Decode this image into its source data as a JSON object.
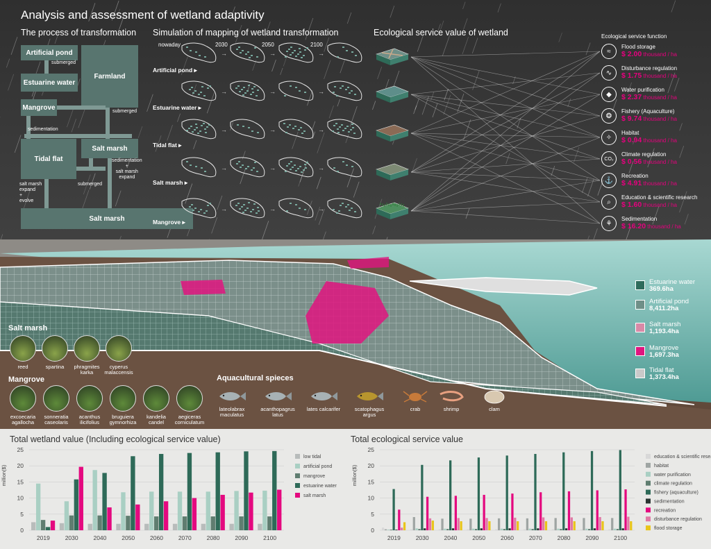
{
  "title": "Analysis and assessment of wetland adaptivity",
  "sections": {
    "process": "The process of transformation",
    "simulation": "Simulation of mapping of wetland transformation",
    "ecological": "Ecological service value of wetland"
  },
  "process": {
    "boxes": {
      "artificial_pond": "Artificial pond",
      "farmland": "Farmland",
      "estuarine_water": "Estuarine water",
      "mangrove": "Mangrove",
      "tidal_flat": "Tidal flat",
      "salt_marsh_1": "Salt marsh",
      "salt_marsh_2": "Salt marsh"
    },
    "notes": {
      "submerged_1": "submerged",
      "submerged_2": "submerged",
      "submerged_3": "submerged",
      "sedimentation": "sedimentation",
      "sed_salt": "sedimentation\n+\nsalt marsh\nexpand",
      "expand_evolve": "salt marsh\nexpand\n+\nevolve"
    }
  },
  "simulation": {
    "years": [
      "nowaday",
      "2030",
      "2050",
      "2100"
    ],
    "rows": [
      "Artificial pond ▸",
      "Estuarine water ▸",
      "Tidal flat ▸",
      "Salt marsh ▸",
      "Mangrove ▸"
    ]
  },
  "services": {
    "heading": "Ecological service function",
    "unit": " thousand / ha",
    "items": [
      {
        "name": "Flood storage",
        "value": "$ 2.00",
        "icon": "flood-icon"
      },
      {
        "name": "Disturbance regulation",
        "value": "$ 1.75",
        "icon": "wave-icon"
      },
      {
        "name": "Water purification",
        "value": "$ 2.37",
        "icon": "drop-icon"
      },
      {
        "name": "Fishery (Aquaculture)",
        "value": "$ 9.74",
        "icon": "fish-icon"
      },
      {
        "name": "Habitat",
        "value": "$ 0.94",
        "icon": "bird-icon"
      },
      {
        "name": "Climate regulation",
        "value": "$ 0.56",
        "icon": "co2-icon"
      },
      {
        "name": "Recreation",
        "value": "$ 4.91",
        "icon": "boat-icon"
      },
      {
        "name": "Education & scientific research",
        "value": "$ 1.60",
        "icon": "magnifier-icon"
      },
      {
        "name": "Sedimentation",
        "value": "$ 16.20",
        "icon": "roots-icon"
      }
    ]
  },
  "area_legend": [
    {
      "name": "Estuarine water",
      "value": "369.6ha",
      "color": "#2f6b5c"
    },
    {
      "name": "Artificial pond",
      "value": "8,411.2ha",
      "color": "#6f8f88"
    },
    {
      "name": "Salt marsh",
      "value": "1,193.4ha",
      "color": "#d88aa7"
    },
    {
      "name": "Mangrove",
      "value": "1,697.3ha",
      "color": "#e0157f"
    },
    {
      "name": "Tidal flat",
      "value": "1,373.4ha",
      "color": "#c9c9c9"
    }
  ],
  "species": {
    "salt_marsh_title": "Salt marsh",
    "salt_marsh": [
      "reed",
      "spartina",
      "phragmites\nkarka",
      "cyperus\nmalaccensis"
    ],
    "mangrove_title": "Mangrove",
    "mangrove": [
      "excoecaria\nagallocha",
      "sonneratia\ncaseolaris",
      "acanthus\nilicifolius",
      "bruguiera\ngymnorhiza",
      "kandelia\ncandel",
      "aegiceras\ncorniculatum"
    ],
    "aqua_title": "Aquacultural spieces",
    "aqua": [
      "lateolabrax\nmaculatus",
      "acanthopagrus\nlatus",
      "lates calcarifer",
      "scatophagus\nargus",
      "crab",
      "shrimp",
      "clam"
    ]
  },
  "chart_data": [
    {
      "type": "bar",
      "title": "Total wetland value (Including ecological service value)",
      "ylabel": "million($)",
      "ylim": [
        0,
        25
      ],
      "yticks": [
        0,
        5,
        10,
        15,
        20,
        25
      ],
      "categories": [
        "2019",
        "2030",
        "2040",
        "2050",
        "2060",
        "2070",
        "2080",
        "2090",
        "2100"
      ],
      "legend": "right",
      "series": [
        {
          "name": "low tidal",
          "color": "#b8bcbb",
          "values": [
            2.5,
            2.2,
            2.0,
            2.0,
            2.0,
            2.0,
            2.0,
            2.0,
            2.0
          ]
        },
        {
          "name": "artificial pond",
          "color": "#a9cfc3",
          "values": [
            14.5,
            9.0,
            18.7,
            11.8,
            12.0,
            12.0,
            12.0,
            12.2,
            12.3
          ]
        },
        {
          "name": "mangrove",
          "color": "#5f7d70",
          "values": [
            3.2,
            4.6,
            4.6,
            4.5,
            4.3,
            4.3,
            4.3,
            4.3,
            4.3
          ]
        },
        {
          "name": "estuarine water",
          "color": "#2e6a58",
          "values": [
            1.0,
            15.8,
            17.8,
            23.0,
            23.7,
            24.0,
            24.2,
            24.5,
            24.6
          ]
        },
        {
          "name": "salt marsh",
          "color": "#e4097f",
          "values": [
            3.0,
            19.7,
            7.1,
            8.0,
            9.0,
            10.0,
            11.0,
            11.7,
            12.6
          ]
        }
      ]
    },
    {
      "type": "bar",
      "title": "Total ecological service value",
      "ylabel": "million($)",
      "ylim": [
        0,
        25
      ],
      "yticks": [
        0,
        5,
        10,
        15,
        20,
        25
      ],
      "categories": [
        "2019",
        "2030",
        "2040",
        "2050",
        "2060",
        "2070",
        "2080",
        "2090",
        "2100"
      ],
      "legend": "right",
      "series": [
        {
          "name": "education & scientific research",
          "color": "#d8d8d8",
          "values": [
            0.8,
            0.3,
            0.3,
            0.3,
            0.3,
            0.3,
            0.3,
            0.3,
            0.3
          ]
        },
        {
          "name": "habitat",
          "color": "#9fa5a3",
          "values": [
            0.3,
            4.1,
            3.6,
            3.6,
            3.7,
            3.7,
            3.8,
            3.8,
            3.8
          ]
        },
        {
          "name": "water purification",
          "color": "#a9cfc3",
          "values": [
            0.2,
            0.6,
            0.5,
            0.5,
            0.5,
            0.5,
            0.5,
            0.5,
            0.5
          ]
        },
        {
          "name": "climate regulation",
          "color": "#5f7d70",
          "values": [
            0.2,
            0.4,
            0.4,
            0.4,
            0.4,
            0.4,
            0.4,
            0.4,
            0.4
          ]
        },
        {
          "name": "fishery (aquaculture)",
          "color": "#2e6a58",
          "values": [
            12.8,
            20.3,
            21.7,
            22.6,
            23.2,
            23.7,
            24.2,
            24.6,
            24.9
          ]
        },
        {
          "name": "sedimentation",
          "color": "#2a3532",
          "values": [
            0.2,
            0.6,
            0.6,
            0.6,
            0.6,
            0.6,
            0.6,
            0.6,
            0.6
          ]
        },
        {
          "name": "recreation",
          "color": "#e4097f",
          "values": [
            6.4,
            10.4,
            10.7,
            11.0,
            11.4,
            11.8,
            12.1,
            12.4,
            12.7
          ]
        },
        {
          "name": "disturbance regulation",
          "color": "#e07aa5",
          "values": [
            0.8,
            3.7,
            3.8,
            3.8,
            3.9,
            4.0,
            4.0,
            4.1,
            4.2
          ]
        },
        {
          "name": "flood storage",
          "color": "#e9c51a",
          "values": [
            2.5,
            3.0,
            2.8,
            2.8,
            2.8,
            2.8,
            2.8,
            2.8,
            2.8
          ]
        }
      ]
    }
  ]
}
